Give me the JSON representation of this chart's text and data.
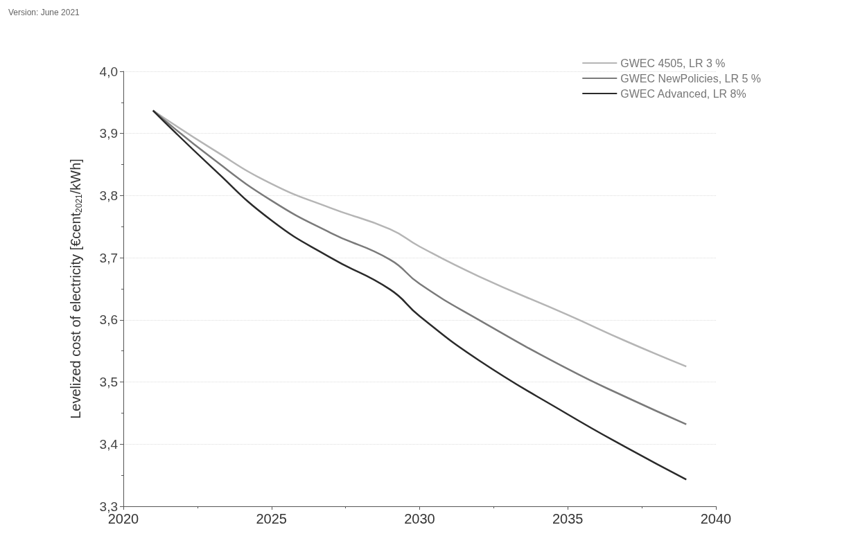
{
  "chart_data": {
    "type": "line",
    "x": [
      2021,
      2023,
      2025,
      2027,
      2029,
      2030,
      2032,
      2035,
      2037,
      2039
    ],
    "series": [
      {
        "name": "GWEC 4505, LR 3 %",
        "color": "#b5b5b5",
        "values": [
          3.937,
          3.875,
          3.819,
          3.78,
          3.746,
          3.718,
          3.67,
          3.608,
          3.565,
          3.525
        ]
      },
      {
        "name": "GWEC NewPolicies, LR 5 %",
        "color": "#7a7a7a",
        "values": [
          3.937,
          3.86,
          3.792,
          3.74,
          3.697,
          3.658,
          3.6,
          3.521,
          3.475,
          3.432
        ]
      },
      {
        "name": "GWEC Advanced, LR 8%",
        "color": "#2a2a2a",
        "values": [
          3.937,
          3.845,
          3.76,
          3.7,
          3.649,
          3.606,
          3.535,
          3.448,
          3.394,
          3.343
        ]
      }
    ],
    "ylabel": "Levelized cost of electricity [€cent$_{2021}$/kWh]",
    "annotations": [
      "Version: June 2021"
    ],
    "xlim": [
      2020,
      2040
    ],
    "xticks": [
      2020,
      2025,
      2030,
      2035,
      2040
    ],
    "ylim": [
      3.3,
      4.0
    ],
    "yticks": [
      {
        "value": 3.3,
        "label": "3,3"
      },
      {
        "value": 3.4,
        "label": "3,4"
      },
      {
        "value": 3.5,
        "label": "3,5"
      },
      {
        "value": 3.6,
        "label": "3,6"
      },
      {
        "value": 3.7,
        "label": "3,7"
      },
      {
        "value": 3.8,
        "label": "3,8"
      },
      {
        "value": 3.9,
        "label": "3,9"
      },
      {
        "value": 4.0,
        "label": "4,0"
      }
    ],
    "grid": "y",
    "legend": "top right",
    "marker": "none",
    "line_style": "solid"
  }
}
